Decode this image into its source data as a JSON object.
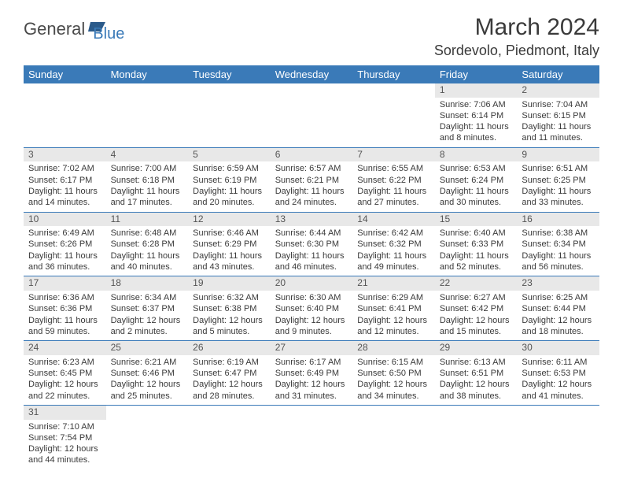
{
  "brand": {
    "part1": "General",
    "part2": "Blue"
  },
  "title": "March 2024",
  "location": "Sordevolo, Piedmont, Italy",
  "colors": {
    "header_bg": "#3a7ab8",
    "header_text": "#ffffff",
    "daynum_bg": "#e8e8e8",
    "border": "#3a7ab8",
    "text": "#3a3a3a"
  },
  "day_names": [
    "Sunday",
    "Monday",
    "Tuesday",
    "Wednesday",
    "Thursday",
    "Friday",
    "Saturday"
  ],
  "weeks": [
    [
      null,
      null,
      null,
      null,
      null,
      {
        "n": "1",
        "sunrise": "7:06 AM",
        "sunset": "6:14 PM",
        "daylight": "11 hours and 8 minutes."
      },
      {
        "n": "2",
        "sunrise": "7:04 AM",
        "sunset": "6:15 PM",
        "daylight": "11 hours and 11 minutes."
      }
    ],
    [
      {
        "n": "3",
        "sunrise": "7:02 AM",
        "sunset": "6:17 PM",
        "daylight": "11 hours and 14 minutes."
      },
      {
        "n": "4",
        "sunrise": "7:00 AM",
        "sunset": "6:18 PM",
        "daylight": "11 hours and 17 minutes."
      },
      {
        "n": "5",
        "sunrise": "6:59 AM",
        "sunset": "6:19 PM",
        "daylight": "11 hours and 20 minutes."
      },
      {
        "n": "6",
        "sunrise": "6:57 AM",
        "sunset": "6:21 PM",
        "daylight": "11 hours and 24 minutes."
      },
      {
        "n": "7",
        "sunrise": "6:55 AM",
        "sunset": "6:22 PM",
        "daylight": "11 hours and 27 minutes."
      },
      {
        "n": "8",
        "sunrise": "6:53 AM",
        "sunset": "6:24 PM",
        "daylight": "11 hours and 30 minutes."
      },
      {
        "n": "9",
        "sunrise": "6:51 AM",
        "sunset": "6:25 PM",
        "daylight": "11 hours and 33 minutes."
      }
    ],
    [
      {
        "n": "10",
        "sunrise": "6:49 AM",
        "sunset": "6:26 PM",
        "daylight": "11 hours and 36 minutes."
      },
      {
        "n": "11",
        "sunrise": "6:48 AM",
        "sunset": "6:28 PM",
        "daylight": "11 hours and 40 minutes."
      },
      {
        "n": "12",
        "sunrise": "6:46 AM",
        "sunset": "6:29 PM",
        "daylight": "11 hours and 43 minutes."
      },
      {
        "n": "13",
        "sunrise": "6:44 AM",
        "sunset": "6:30 PM",
        "daylight": "11 hours and 46 minutes."
      },
      {
        "n": "14",
        "sunrise": "6:42 AM",
        "sunset": "6:32 PM",
        "daylight": "11 hours and 49 minutes."
      },
      {
        "n": "15",
        "sunrise": "6:40 AM",
        "sunset": "6:33 PM",
        "daylight": "11 hours and 52 minutes."
      },
      {
        "n": "16",
        "sunrise": "6:38 AM",
        "sunset": "6:34 PM",
        "daylight": "11 hours and 56 minutes."
      }
    ],
    [
      {
        "n": "17",
        "sunrise": "6:36 AM",
        "sunset": "6:36 PM",
        "daylight": "11 hours and 59 minutes."
      },
      {
        "n": "18",
        "sunrise": "6:34 AM",
        "sunset": "6:37 PM",
        "daylight": "12 hours and 2 minutes."
      },
      {
        "n": "19",
        "sunrise": "6:32 AM",
        "sunset": "6:38 PM",
        "daylight": "12 hours and 5 minutes."
      },
      {
        "n": "20",
        "sunrise": "6:30 AM",
        "sunset": "6:40 PM",
        "daylight": "12 hours and 9 minutes."
      },
      {
        "n": "21",
        "sunrise": "6:29 AM",
        "sunset": "6:41 PM",
        "daylight": "12 hours and 12 minutes."
      },
      {
        "n": "22",
        "sunrise": "6:27 AM",
        "sunset": "6:42 PM",
        "daylight": "12 hours and 15 minutes."
      },
      {
        "n": "23",
        "sunrise": "6:25 AM",
        "sunset": "6:44 PM",
        "daylight": "12 hours and 18 minutes."
      }
    ],
    [
      {
        "n": "24",
        "sunrise": "6:23 AM",
        "sunset": "6:45 PM",
        "daylight": "12 hours and 22 minutes."
      },
      {
        "n": "25",
        "sunrise": "6:21 AM",
        "sunset": "6:46 PM",
        "daylight": "12 hours and 25 minutes."
      },
      {
        "n": "26",
        "sunrise": "6:19 AM",
        "sunset": "6:47 PM",
        "daylight": "12 hours and 28 minutes."
      },
      {
        "n": "27",
        "sunrise": "6:17 AM",
        "sunset": "6:49 PM",
        "daylight": "12 hours and 31 minutes."
      },
      {
        "n": "28",
        "sunrise": "6:15 AM",
        "sunset": "6:50 PM",
        "daylight": "12 hours and 34 minutes."
      },
      {
        "n": "29",
        "sunrise": "6:13 AM",
        "sunset": "6:51 PM",
        "daylight": "12 hours and 38 minutes."
      },
      {
        "n": "30",
        "sunrise": "6:11 AM",
        "sunset": "6:53 PM",
        "daylight": "12 hours and 41 minutes."
      }
    ],
    [
      {
        "n": "31",
        "sunrise": "7:10 AM",
        "sunset": "7:54 PM",
        "daylight": "12 hours and 44 minutes."
      },
      null,
      null,
      null,
      null,
      null,
      null
    ]
  ],
  "labels": {
    "sunrise_prefix": "Sunrise: ",
    "sunset_prefix": "Sunset: ",
    "daylight_prefix": "Daylight: "
  }
}
